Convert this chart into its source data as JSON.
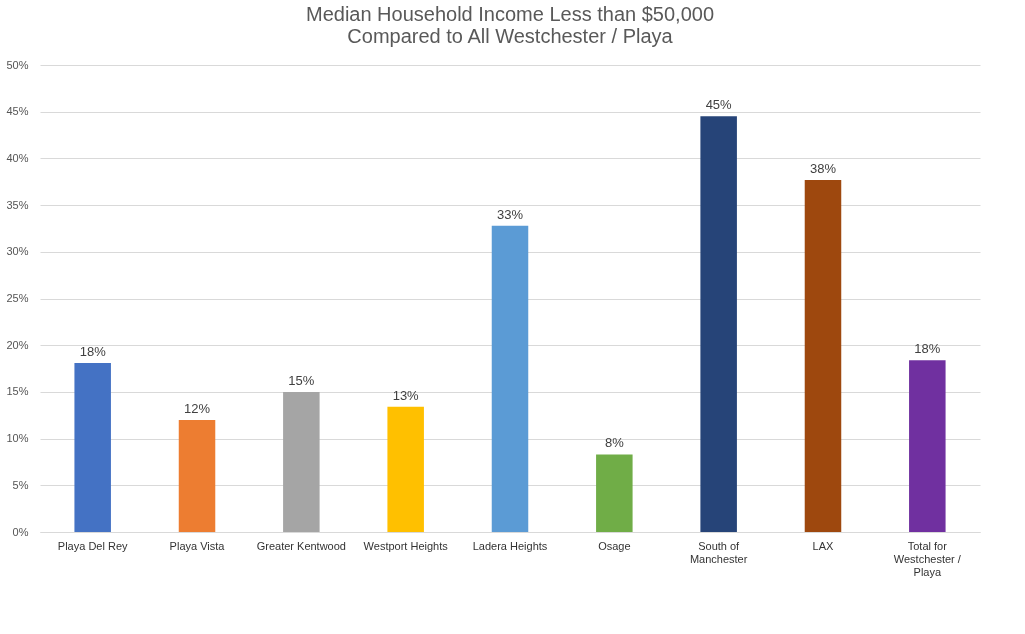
{
  "chart_data": {
    "type": "bar",
    "title": "Median Household Income Less than $50,000\nCompared to All Westchester / Playa",
    "categories": [
      "Playa Del Rey",
      "Playa Vista",
      "Greater Kentwood",
      "Westport Heights",
      "Ladera Heights",
      "Osage",
      "South of Manchester",
      "LAX",
      "Total for Westchester / Playa"
    ],
    "values": [
      18.1,
      12.0,
      15.0,
      13.4,
      32.8,
      8.3,
      44.5,
      37.7,
      18.4
    ],
    "value_labels": [
      "18%",
      "12%",
      "15%",
      "13%",
      "33%",
      "8%",
      "45%",
      "38%",
      "18%"
    ],
    "colors": [
      "#4472c4",
      "#ed7d31",
      "#a5a5a5",
      "#ffc000",
      "#5b9bd5",
      "#70ad47",
      "#264478",
      "#9e480e",
      "#7030a0"
    ],
    "ylim": [
      0,
      50
    ],
    "yticks": [
      {
        "value": 0,
        "label": "0%"
      },
      {
        "value": 5,
        "label": "5%"
      },
      {
        "value": 10,
        "label": "10%"
      },
      {
        "value": 15,
        "label": "15%"
      },
      {
        "value": 20,
        "label": "20%"
      },
      {
        "value": 25,
        "label": "25%"
      },
      {
        "value": 30,
        "label": "30%"
      },
      {
        "value": 35,
        "label": "35%"
      },
      {
        "value": 40,
        "label": "40%"
      },
      {
        "value": 45,
        "label": "45%"
      },
      {
        "value": 50,
        "label": "50%"
      }
    ],
    "grid": "y"
  }
}
